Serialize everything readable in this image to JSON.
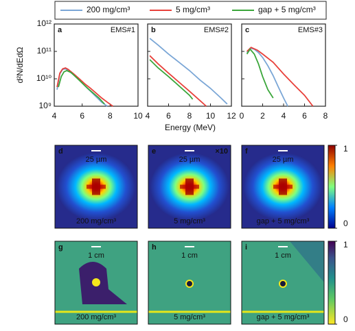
{
  "chart_data": [
    {
      "type": "line",
      "label": "a",
      "annotation": "EMS#1",
      "log_y": true,
      "xlim": [
        4,
        10
      ],
      "xticks": [
        4,
        6,
        8,
        10
      ],
      "ylim": [
        1000000000.0,
        1000000000000.0
      ],
      "yticks": [
        {
          "value": 1000000000.0,
          "label": "10⁹"
        },
        {
          "value": 10000000000.0,
          "label": "10¹⁰"
        },
        {
          "value": 100000000000.0,
          "label": "10¹¹"
        },
        {
          "value": 1000000000000.0,
          "label": "10¹²"
        }
      ],
      "series": [
        {
          "name": "200 mg/cm³",
          "color": "#7aa6d6",
          "x": [
            4.2,
            4.4,
            4.6,
            4.8,
            5.0,
            5.4,
            5.8,
            6.2,
            6.6,
            7.0,
            7.4,
            7.8
          ],
          "values": [
            4000000000.0,
            15000000000.0,
            22000000000.0,
            23000000000.0,
            20000000000.0,
            14000000000.0,
            9000000000.0,
            5500000000.0,
            3500000000.0,
            2200000000.0,
            1400000000.0,
            1000000000.0
          ]
        },
        {
          "name": "5 mg/cm³",
          "color": "#e8403a",
          "x": [
            4.2,
            4.4,
            4.6,
            4.8,
            5.0,
            5.4,
            5.8,
            6.2,
            6.6,
            7.0,
            7.4,
            7.8,
            8.2
          ],
          "values": [
            5000000000.0,
            16000000000.0,
            23000000000.0,
            25000000000.0,
            22000000000.0,
            15000000000.0,
            10000000000.0,
            6500000000.0,
            4500000000.0,
            3000000000.0,
            2000000000.0,
            1400000000.0,
            1000000000.0
          ]
        },
        {
          "name": "gap + 5 mg/cm³",
          "color": "#3aa63a",
          "x": [
            4.3,
            4.5,
            4.7,
            4.9,
            5.2,
            5.6,
            6.0,
            6.4,
            6.8,
            7.2,
            7.6
          ],
          "values": [
            5000000000.0,
            12000000000.0,
            18000000000.0,
            20000000000.0,
            17000000000.0,
            11000000000.0,
            7000000000.0,
            4500000000.0,
            3000000000.0,
            2000000000.0,
            1200000000.0
          ]
        }
      ]
    },
    {
      "type": "line",
      "label": "b",
      "annotation": "EMS#2",
      "log_y": true,
      "xlim": [
        4,
        12
      ],
      "xticks": [
        4,
        6,
        8,
        10,
        12
      ],
      "ylim": [
        1000000000.0,
        1000000000000.0
      ],
      "series": [
        {
          "color": "#7aa6d6",
          "x": [
            4.2,
            5,
            6,
            7,
            8,
            9,
            10,
            11,
            11.6
          ],
          "values": [
            300000000000.0,
            170000000000.0,
            80000000000.0,
            40000000000.0,
            20000000000.0,
            9000000000.0,
            4500000000.0,
            2000000000.0,
            1200000000.0
          ]
        },
        {
          "color": "#e8403a",
          "x": [
            4.2,
            5,
            6,
            7,
            8,
            9,
            9.6
          ],
          "values": [
            70000000000.0,
            35000000000.0,
            16000000000.0,
            7500000000.0,
            3500000000.0,
            1600000000.0,
            1000000000.0
          ]
        },
        {
          "color": "#3aa63a",
          "x": [
            4.2,
            5,
            6,
            7,
            8,
            8.3
          ],
          "values": [
            50000000000.0,
            25000000000.0,
            12000000000.0,
            5500000000.0,
            2500000000.0,
            1800000000.0
          ]
        }
      ]
    },
    {
      "type": "line",
      "label": "c",
      "annotation": "EMS#3",
      "log_y": true,
      "xlim": [
        0,
        8
      ],
      "xticks": [
        0,
        2,
        4,
        6,
        8
      ],
      "ylim": [
        1000000000.0,
        1000000000000.0
      ],
      "series": [
        {
          "color": "#7aa6d6",
          "x": [
            0.5,
            0.8,
            1.2,
            1.6,
            2,
            2.5,
            3,
            3.5,
            4,
            4.4
          ],
          "values": [
            90000000000.0,
            130000000000.0,
            120000000000.0,
            90000000000.0,
            60000000000.0,
            30000000000.0,
            13000000000.0,
            5000000000.0,
            2000000000.0,
            1000000000.0
          ]
        },
        {
          "color": "#e8403a",
          "x": [
            0.5,
            0.9,
            1.5,
            2,
            3,
            4,
            5,
            6,
            6.8
          ],
          "values": [
            100000000000.0,
            140000000000.0,
            110000000000.0,
            80000000000.0,
            40000000000.0,
            15000000000.0,
            6000000000.0,
            2500000000.0,
            1000000000.0
          ]
        },
        {
          "color": "#3aa63a",
          "x": [
            0.5,
            0.8,
            1.2,
            1.6,
            2,
            2.5,
            3
          ],
          "values": [
            80000000000.0,
            120000000000.0,
            80000000000.0,
            35000000000.0,
            12000000000.0,
            4000000000.0,
            2000000000.0
          ]
        }
      ]
    }
  ],
  "shared": {
    "xlabel": "Energy (MeV)",
    "ylabel": "d²N/dEdΩ"
  },
  "images": {
    "rows": [
      {
        "style": "jet",
        "colorbar_ticks": [
          0,
          1
        ],
        "panels": [
          {
            "letter": "d",
            "scale": "25 µm",
            "caption": "200 mg/cm³"
          },
          {
            "letter": "e",
            "scale": "25 µm",
            "factor": "×10",
            "caption": "5 mg/cm³"
          },
          {
            "letter": "f",
            "scale": "25 µm",
            "caption": "gap + 5 mg/cm³"
          }
        ]
      },
      {
        "style": "viridis",
        "colorbar_ticks": [
          0,
          1
        ],
        "panels": [
          {
            "letter": "g",
            "scale": "1 cm",
            "caption": "200 mg/cm³"
          },
          {
            "letter": "h",
            "scale": "1 cm",
            "caption": "5 mg/cm³"
          },
          {
            "letter": "i",
            "scale": "1 cm",
            "caption": "gap + 5 mg/cm³"
          }
        ]
      }
    ]
  }
}
